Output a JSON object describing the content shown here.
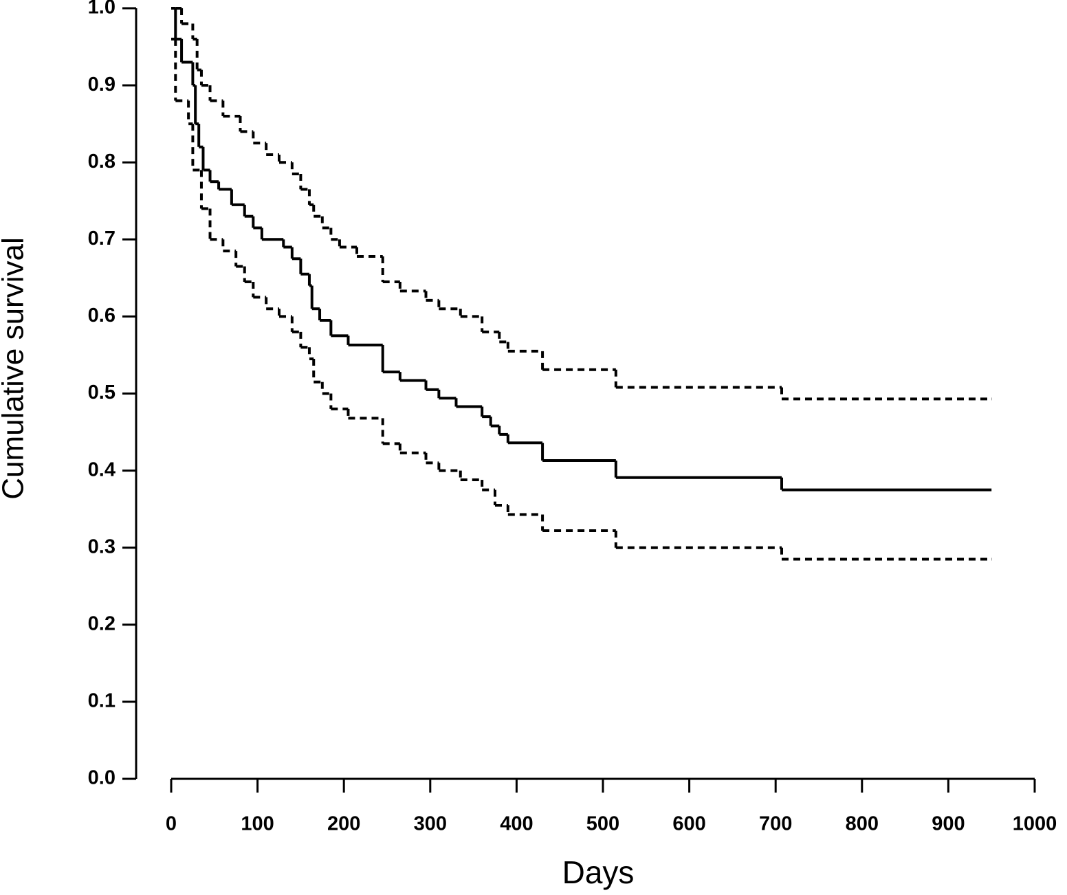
{
  "chart_data": {
    "type": "step",
    "xlabel": "Days",
    "ylabel": "Cumulative survival",
    "xlim": [
      0,
      1000
    ],
    "ylim": [
      0,
      1
    ],
    "xticks": [
      0,
      100,
      200,
      300,
      400,
      500,
      600,
      700,
      800,
      900,
      1000
    ],
    "yticks": [
      {
        "value": 0,
        "label": "0.0"
      },
      0.1,
      0.2,
      0.3,
      0.4,
      0.5,
      0.6,
      0.7,
      0.8,
      0.9,
      {
        "value": 1,
        "label": "1.0"
      }
    ],
    "series": [
      {
        "style": "solid",
        "color": "#000000",
        "x": [
          0,
          5,
          12,
          25,
          28,
          32,
          37,
          45,
          55,
          70,
          85,
          95,
          105,
          130,
          140,
          150,
          160,
          163,
          172,
          185,
          205,
          245,
          265,
          295,
          310,
          330,
          360,
          370,
          380,
          390,
          430,
          515,
          707,
          950
        ],
        "values": [
          1.0,
          0.96,
          0.93,
          0.9,
          0.85,
          0.82,
          0.79,
          0.775,
          0.765,
          0.745,
          0.73,
          0.715,
          0.7,
          0.69,
          0.675,
          0.655,
          0.64,
          0.61,
          0.595,
          0.575,
          0.563,
          0.528,
          0.517,
          0.505,
          0.494,
          0.483,
          0.47,
          0.458,
          0.447,
          0.436,
          0.413,
          0.391,
          0.375,
          0.375
        ]
      },
      {
        "style": "dashed",
        "color": "#000000",
        "x": [
          5,
          12,
          25,
          30,
          35,
          45,
          60,
          80,
          95,
          110,
          125,
          140,
          150,
          160,
          165,
          175,
          185,
          195,
          215,
          245,
          265,
          295,
          310,
          335,
          360,
          380,
          390,
          430,
          515,
          707,
          950
        ],
        "values": [
          1.0,
          0.98,
          0.96,
          0.92,
          0.9,
          0.88,
          0.86,
          0.84,
          0.825,
          0.81,
          0.8,
          0.785,
          0.765,
          0.745,
          0.73,
          0.715,
          0.7,
          0.69,
          0.678,
          0.645,
          0.633,
          0.621,
          0.61,
          0.6,
          0.58,
          0.567,
          0.555,
          0.531,
          0.508,
          0.493,
          0.493
        ]
      },
      {
        "style": "dashed",
        "color": "#000000",
        "x": [
          0,
          5,
          20,
          25,
          35,
          45,
          60,
          75,
          85,
          95,
          110,
          125,
          140,
          150,
          160,
          165,
          175,
          185,
          205,
          245,
          265,
          295,
          310,
          335,
          360,
          375,
          390,
          430,
          515,
          707,
          950
        ],
        "values": [
          0.96,
          0.88,
          0.85,
          0.79,
          0.74,
          0.7,
          0.685,
          0.665,
          0.645,
          0.625,
          0.61,
          0.6,
          0.58,
          0.56,
          0.545,
          0.515,
          0.5,
          0.48,
          0.468,
          0.435,
          0.423,
          0.41,
          0.4,
          0.388,
          0.375,
          0.355,
          0.343,
          0.322,
          0.3,
          0.285,
          0.285
        ]
      }
    ]
  }
}
